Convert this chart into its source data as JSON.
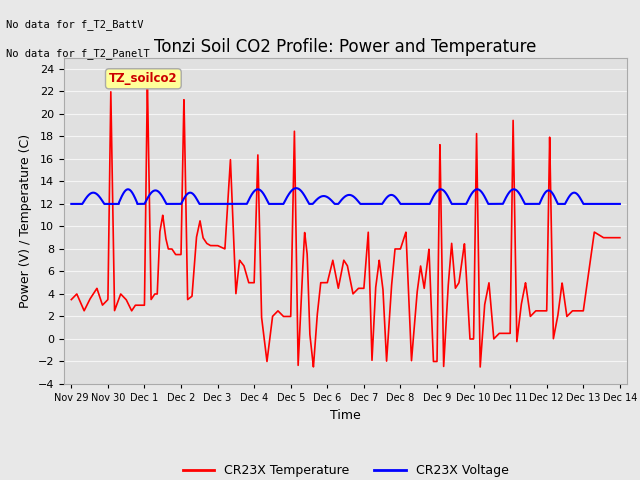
{
  "title": "Tonzi Soil CO2 Profile: Power and Temperature",
  "ylabel": "Power (V) / Temperature (C)",
  "xlabel": "Time",
  "ylim": [
    -4,
    25
  ],
  "yticks": [
    -4,
    -2,
    0,
    2,
    4,
    6,
    8,
    10,
    12,
    14,
    16,
    18,
    20,
    22,
    24
  ],
  "xtick_labels": [
    "Nov 29",
    "Nov 30",
    "Dec 1",
    "Dec 2",
    "Dec 3",
    "Dec 4",
    "Dec 5",
    "Dec 6",
    "Dec 7",
    "Dec 8",
    "Dec 9",
    "Dec 10",
    "Dec 11",
    "Dec 12",
    "Dec 13",
    "Dec 14"
  ],
  "no_data_text1": "No data for f_T2_BattV",
  "no_data_text2": "No data for f_T2_PanelT",
  "legend_label1": "CR23X Temperature",
  "legend_label2": "CR23X Voltage",
  "legend_color1": "#ff0000",
  "legend_color2": "#0000ff",
  "box_label": "TZ_soilco2",
  "box_color": "#ffff99",
  "box_edge_color": "#aaaaaa",
  "fig_bg_color": "#e8e8e8",
  "plot_bg_color": "#e0e0e0",
  "grid_color": "#f5f5f5",
  "title_fontsize": 12,
  "axis_fontsize": 9,
  "tick_fontsize": 8,
  "linewidth_red": 1.2,
  "linewidth_blue": 1.5
}
